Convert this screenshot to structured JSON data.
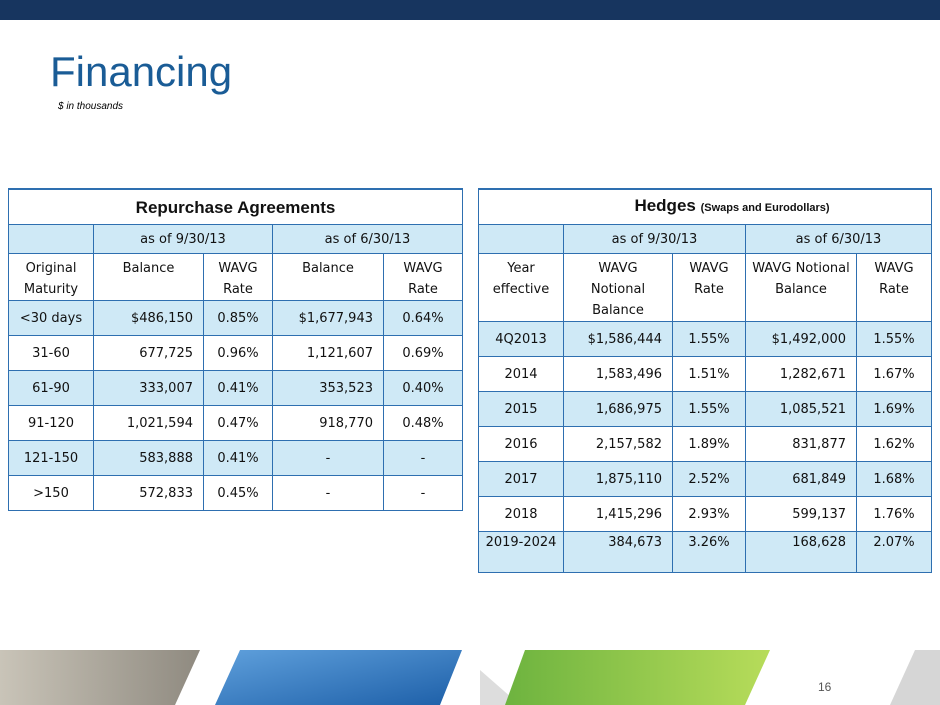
{
  "header": {
    "title": "Financing",
    "subtitle": "$ in thousands"
  },
  "page_number": "16",
  "tables": [
    {
      "title": "Repurchase Agreements",
      "groups": [
        "as of 9/30/13",
        "as of 6/30/13"
      ],
      "columns": [
        "Original Maturity",
        "Balance",
        "WAVG Rate",
        "Balance",
        "WAVG Rate"
      ],
      "rows": [
        [
          "<30 days",
          "$486,150",
          "0.85%",
          "$1,677,943",
          "0.64%"
        ],
        [
          "31-60",
          "677,725",
          "0.96%",
          "1,121,607",
          "0.69%"
        ],
        [
          "61-90",
          "333,007",
          "0.41%",
          "353,523",
          "0.40%"
        ],
        [
          "91-120",
          "1,021,594",
          "0.47%",
          "918,770",
          "0.48%"
        ],
        [
          "121-150",
          "583,888",
          "0.41%",
          "-",
          "-"
        ],
        [
          ">150",
          "572,833",
          "0.45%",
          "-",
          "-"
        ]
      ]
    },
    {
      "title": "Hedges",
      "title_note": "(Swaps and Eurodollars)",
      "groups": [
        "as of 9/30/13",
        "as of 6/30/13"
      ],
      "columns": [
        "Year effective",
        "WAVG Notional Balance",
        "WAVG Rate",
        "WAVG Notional Balance",
        "WAVG Rate"
      ],
      "rows": [
        [
          "4Q2013",
          "$1,586,444",
          "1.55%",
          "$1,492,000",
          "1.55%"
        ],
        [
          "2014",
          "1,583,496",
          "1.51%",
          "1,282,671",
          "1.67%"
        ],
        [
          "2015",
          "1,686,975",
          "1.55%",
          "1,085,521",
          "1.69%"
        ],
        [
          "2016",
          "2,157,582",
          "1.89%",
          "831,877",
          "1.62%"
        ],
        [
          "2017",
          "1,875,110",
          "2.52%",
          "681,849",
          "1.68%"
        ],
        [
          "2018",
          "1,415,296",
          "2.93%",
          "599,137",
          "1.76%"
        ],
        [
          "2019-2024",
          "384,673",
          "3.26%",
          "168,628",
          "2.07%"
        ]
      ]
    }
  ]
}
